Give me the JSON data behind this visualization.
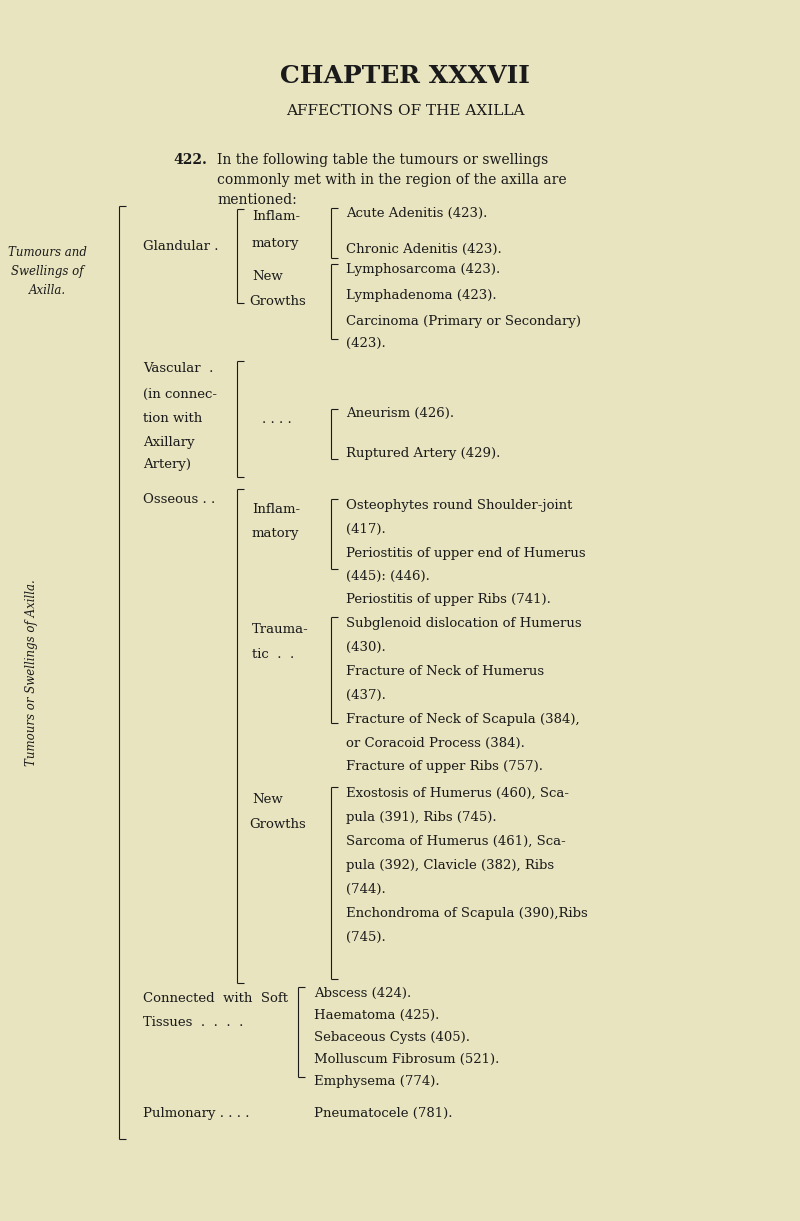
{
  "bg_color": "#e8e4c0",
  "title": "CHAPTER XXXVII",
  "subtitle": "AFFECTIONS OF THE AXILLA",
  "margin_label_line1": "Tumours and",
  "margin_label_line2": "Swellings of",
  "margin_label_line3": "Axilla.",
  "intro_bold": "422.",
  "intro_text": " In the following table the tumours or swellings commonly met with in the region of the axilla are mentioned:",
  "sidebar_text": "Tumours or Swellings of Axilla.",
  "text_color": "#1a1a1a",
  "font_size_title": 18,
  "font_size_subtitle": 11,
  "font_size_body": 9.5,
  "font_size_small": 8.5
}
